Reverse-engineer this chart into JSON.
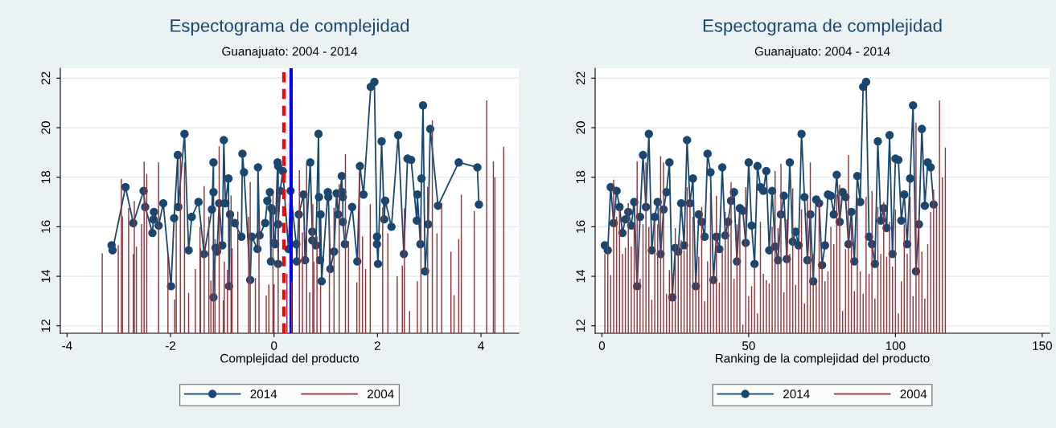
{
  "chart_data": [
    {
      "type": "line",
      "title": "Espectograma de complejidad",
      "subtitle": "Guanajuato: 2004 - 2014",
      "xlabel": "Complejidad del producto",
      "xlim": [
        -4.13,
        4.73
      ],
      "xticks": [
        -4,
        -2,
        0,
        2,
        4
      ],
      "ylim": [
        11.7,
        22.4
      ],
      "yticks": [
        12,
        14,
        16,
        18,
        20,
        22
      ],
      "grid": "y",
      "legend": "bottom",
      "ref_lines": [
        {
          "axis": "x",
          "value": 0.19,
          "color": "#ff0000",
          "line_style": "dashed"
        },
        {
          "axis": "x",
          "value": 0.33,
          "color": "#0000ff",
          "line_style": "solid"
        }
      ],
      "series": [
        {
          "name": "2014",
          "color": "#1a476f",
          "marker": "circle",
          "x": [
            -3.14,
            -3.12,
            -2.87,
            -2.72,
            -2.52,
            -2.49,
            -2.35,
            -2.33,
            -2.32,
            -2.23,
            -2.14,
            -1.99,
            -1.93,
            -1.86,
            -1.85,
            -1.73,
            -1.65,
            -1.59,
            -1.46,
            -1.35,
            -1.2,
            -1.17,
            -1.17,
            -1.17,
            -1.13,
            -1.1,
            -1.06,
            -1.0,
            -0.97,
            -0.94,
            -0.88,
            -0.87,
            -0.85,
            -0.76,
            -0.63,
            -0.61,
            -0.58,
            -0.46,
            -0.43,
            -0.32,
            -0.31,
            -0.28,
            -0.17,
            -0.13,
            -0.08,
            -0.06,
            -0.05,
            -0.02,
            0.0,
            0.02,
            0.07,
            0.08,
            0.08,
            0.08,
            0.12,
            0.17,
            0.28,
            0.32,
            0.43,
            0.44,
            0.48,
            0.57,
            0.6,
            0.7,
            0.74,
            0.74,
            0.81,
            0.86,
            0.87,
            0.89,
            0.9,
            0.92,
            1.04,
            1.05,
            1.09,
            1.16,
            1.21,
            1.24,
            1.31,
            1.32,
            1.33,
            1.33,
            1.37,
            1.51,
            1.61,
            1.66,
            1.73,
            1.87,
            1.94,
            1.99,
            1.99,
            2.01,
            2.08,
            2.13,
            2.15,
            2.27,
            2.4,
            2.51,
            2.58,
            2.65,
            2.76,
            2.77,
            2.83,
            2.85,
            2.88,
            2.92,
            2.98,
            3.02,
            3.17,
            3.57,
            3.93,
            3.96
          ],
          "values": [
            15.25,
            15.05,
            17.6,
            16.15,
            17.45,
            16.8,
            15.75,
            16.3,
            16.6,
            16.05,
            16.95,
            13.6,
            16.35,
            18.9,
            16.8,
            19.75,
            15.05,
            16.4,
            17.0,
            14.9,
            16.7,
            18.6,
            17.4,
            13.15,
            15.15,
            15.0,
            16.95,
            15.25,
            19.5,
            16.95,
            17.95,
            13.6,
            16.5,
            16.15,
            15.6,
            18.95,
            18.2,
            13.85,
            15.6,
            15.1,
            18.4,
            15.65,
            16.15,
            17.05,
            17.4,
            14.6,
            16.75,
            16.65,
            15.35,
            15.3,
            18.6,
            14.5,
            18.45,
            16.1,
            17.45,
            18.25,
            15.1,
            17.45,
            15.3,
            14.6,
            16.5,
            17.3,
            14.65,
            18.6,
            15.8,
            15.45,
            15.25,
            19.75,
            17.2,
            14.65,
            16.5,
            13.8,
            17.4,
            17.2,
            14.3,
            15.0,
            17.35,
            16.5,
            18.05,
            17.4,
            17.2,
            16.2,
            15.3,
            16.8,
            14.6,
            18.45,
            17.3,
            21.65,
            21.85,
            15.6,
            15.3,
            14.5,
            19.45,
            16.3,
            17.05,
            16.0,
            19.7,
            14.9,
            18.75,
            18.7,
            16.25,
            17.3,
            15.3,
            17.95,
            20.9,
            14.2,
            16.1,
            19.95,
            16.85,
            18.6,
            18.4,
            16.9
          ]
        },
        {
          "name": "2004",
          "type": "bar",
          "color": "#90353b",
          "x": [
            -3.32,
            -3.01,
            -2.95,
            -2.93,
            -2.81,
            -2.72,
            -2.7,
            -2.66,
            -2.56,
            -2.51,
            -2.46,
            -2.23,
            -2.05,
            -1.92,
            -1.89,
            -1.81,
            -1.73,
            -1.65,
            -1.52,
            -1.43,
            -1.42,
            -1.35,
            -1.26,
            -1.22,
            -1.17,
            -1.14,
            -1.06,
            -0.98,
            -0.96,
            -0.9,
            -0.83,
            -0.81,
            -0.7,
            -0.49,
            -0.46,
            -0.36,
            -0.29,
            -0.15,
            -0.1,
            -0.02,
            0.0,
            0.08,
            0.25,
            0.34,
            0.49,
            0.55,
            0.63,
            0.69,
            0.75,
            0.77,
            0.83,
            0.9,
            1.07,
            1.16,
            1.26,
            1.38,
            1.44,
            1.6,
            1.65,
            1.71,
            1.77,
            1.86,
            2.1,
            2.2,
            2.38,
            2.48,
            2.52,
            2.62,
            2.77,
            2.84,
            2.97,
            3.06,
            3.15,
            3.24,
            3.42,
            3.48,
            3.57,
            3.62,
            3.87,
            4.11,
            4.24,
            4.27,
            4.44
          ],
          "values": [
            14.93,
            15.26,
            17.93,
            16.42,
            16.76,
            14.89,
            17.03,
            15.19,
            16.11,
            18.63,
            18.14,
            18.6,
            14.88,
            13.06,
            16.25,
            18.84,
            18.6,
            13.33,
            14.29,
            15.99,
            15.13,
            17.64,
            16.42,
            13.83,
            14.21,
            15.5,
            19.25,
            13.03,
            14.59,
            14.27,
            17.27,
            15.13,
            16.61,
            16.4,
            17.8,
            13.94,
            16.47,
            13.22,
            13.67,
            17.35,
            13.67,
            17.61,
            14.1,
            13.78,
            18.28,
            15.77,
            18.57,
            13.35,
            16.91,
            14.59,
            15.61,
            13.62,
            16.0,
            16.77,
            17.72,
            18.93,
            15.41,
            13.76,
            18.2,
            15.61,
            14.29,
            16.91,
            16.78,
            15.74,
            14.0,
            14.43,
            16.75,
            12.6,
            13.8,
            16.31,
            17.61,
            20.3,
            15.74,
            16.96,
            14.99,
            13.24,
            15.5,
            17.29,
            16.64,
            21.1,
            18.65,
            18.0,
            19.23
          ]
        }
      ]
    },
    {
      "type": "line",
      "title": "Espectograma de complejidad",
      "subtitle": "Guanajuato: 2004 - 2014",
      "xlabel": "Ranking de la complejidad del producto",
      "xlim": [
        -2.3,
        152.5
      ],
      "xticks": [
        0,
        50,
        100,
        150
      ],
      "ylim": [
        11.7,
        22.4
      ],
      "yticks": [
        12,
        14,
        16,
        18,
        20,
        22
      ],
      "grid": "y",
      "legend": "bottom",
      "series": [
        {
          "name": "2014",
          "color": "#1a476f",
          "marker": "circle",
          "x": [
            1,
            2,
            3,
            4,
            5,
            6,
            7,
            8,
            9,
            10,
            11,
            12,
            13,
            14,
            15,
            16,
            17,
            18,
            19,
            20,
            21,
            22,
            23,
            24,
            25,
            26,
            27,
            28,
            29,
            30,
            31,
            32,
            33,
            34,
            35,
            36,
            37,
            38,
            39,
            40,
            41,
            42,
            43,
            44,
            45,
            46,
            47,
            48,
            49,
            50,
            51,
            52,
            53,
            54,
            55,
            56,
            57,
            58,
            59,
            60,
            61,
            62,
            63,
            64,
            65,
            66,
            67,
            68,
            69,
            70,
            71,
            72,
            73,
            74,
            75,
            76,
            77,
            78,
            79,
            80,
            81,
            82,
            83,
            84,
            85,
            86,
            87,
            88,
            89,
            90,
            91,
            92,
            93,
            94,
            95,
            96,
            97,
            98,
            99,
            100,
            101,
            102,
            103,
            104,
            105,
            106,
            107,
            108,
            109,
            110,
            111,
            112,
            113
          ],
          "values": [
            15.25,
            15.05,
            17.6,
            16.15,
            17.45,
            16.8,
            15.75,
            16.3,
            16.6,
            16.05,
            17.0,
            13.6,
            16.4,
            18.9,
            16.8,
            19.75,
            15.05,
            16.4,
            17.0,
            14.9,
            16.7,
            17.4,
            18.6,
            13.15,
            15.15,
            15.0,
            16.95,
            15.25,
            19.5,
            16.95,
            17.95,
            13.6,
            16.5,
            16.2,
            15.6,
            18.95,
            18.2,
            13.85,
            15.6,
            15.1,
            18.4,
            15.65,
            16.2,
            17.05,
            17.4,
            14.6,
            16.75,
            16.65,
            15.35,
            18.6,
            16.05,
            14.5,
            18.45,
            17.6,
            17.45,
            18.25,
            15.05,
            17.45,
            15.2,
            14.65,
            16.5,
            17.25,
            14.7,
            18.6,
            15.4,
            15.8,
            15.25,
            19.75,
            17.2,
            14.65,
            16.5,
            13.8,
            17.1,
            16.95,
            14.45,
            15.25,
            17.3,
            17.25,
            16.5,
            18.1,
            16.2,
            17.4,
            17.2,
            15.3,
            16.6,
            14.6,
            18.05,
            17.0,
            21.65,
            21.85,
            15.6,
            15.3,
            14.5,
            19.45,
            16.25,
            16.75,
            15.95,
            19.7,
            14.9,
            18.75,
            18.7,
            16.25,
            17.3,
            15.3,
            17.95,
            20.9,
            14.2,
            16.1,
            19.95,
            16.85,
            18.6,
            18.4,
            16.9
          ]
        },
        {
          "name": "2004",
          "type": "bar",
          "color": "#90353b",
          "x": [
            1,
            2,
            3,
            4,
            5,
            6,
            7,
            8,
            9,
            10,
            11,
            12,
            13,
            14,
            15,
            16,
            17,
            18,
            19,
            20,
            21,
            22,
            23,
            24,
            25,
            26,
            27,
            28,
            29,
            30,
            31,
            32,
            33,
            34,
            35,
            36,
            37,
            38,
            39,
            40,
            41,
            42,
            43,
            44,
            45,
            46,
            47,
            48,
            49,
            50,
            51,
            52,
            53,
            54,
            55,
            56,
            57,
            58,
            59,
            60,
            61,
            62,
            63,
            64,
            65,
            66,
            67,
            68,
            69,
            70,
            71,
            72,
            73,
            74,
            75,
            76,
            77,
            78,
            79,
            80,
            81,
            82,
            83,
            84,
            85,
            86,
            87,
            88,
            89,
            90,
            91,
            92,
            93,
            94,
            95,
            96,
            97,
            98,
            99,
            100,
            101,
            102,
            103,
            104,
            105,
            106,
            107,
            108,
            109,
            110,
            111,
            112,
            113,
            114,
            115,
            116,
            117
          ],
          "values": [
            14.9,
            15.25,
            14.05,
            17.9,
            16.4,
            16.75,
            14.9,
            15.15,
            16.95,
            15.2,
            16.1,
            18.65,
            13.9,
            16.1,
            18.6,
            16.0,
            13.05,
            16.25,
            16.1,
            18.85,
            18.6,
            13.3,
            14.25,
            14.1,
            15.95,
            15.25,
            15.45,
            15.05,
            17.6,
            17.0,
            16.4,
            14.15,
            14.8,
            16.8,
            13.0,
            14.6,
            17.4,
            14.25,
            17.25,
            13.75,
            15.15,
            16.6,
            16.4,
            17.8,
            13.9,
            16.1,
            16.5,
            12.05,
            17.6,
            13.2,
            13.6,
            14.4,
            12.5,
            16.2,
            14.1,
            13.85,
            13.7,
            16.0,
            18.25,
            15.95,
            18.55,
            13.35,
            16.3,
            14.9,
            17.55,
            13.65,
            15.2,
            16.7,
            12.9,
            17.1,
            18.6,
            14.9,
            13.7,
            17.0,
            14.6,
            13.8,
            14.2,
            16.0,
            15.3,
            17.3,
            17.7,
            12.6,
            15.1,
            18.9,
            16.1,
            13.4,
            17.2,
            14.2,
            13.3,
            17.2,
            14.1,
            17.45,
            13.1,
            16.8,
            14.9,
            17.0,
            14.8,
            16.2,
            14.4,
            16.7,
            12.5,
            13.8,
            16.1,
            14.9,
            17.2,
            13.2,
            20.2,
            16.3,
            15.0,
            13.1,
            15.3,
            16.6,
            17.5,
            16.8,
            21.1,
            18.0,
            19.2
          ]
        }
      ]
    }
  ]
}
